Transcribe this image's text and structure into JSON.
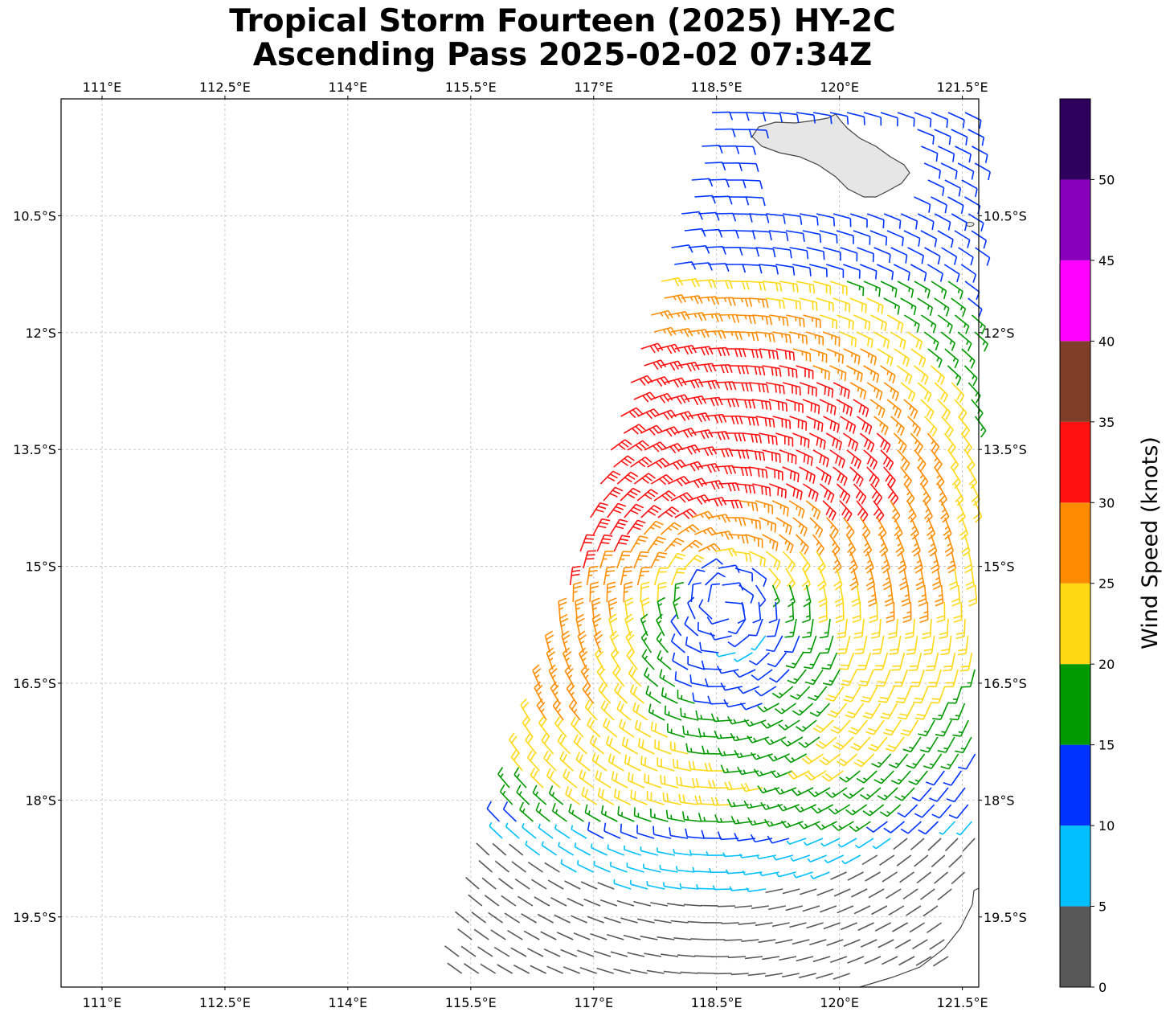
{
  "title": {
    "line1": "Tropical Storm Fourteen (2025) HY-2C",
    "line2": "Ascending Pass 2025-02-02 07:34Z"
  },
  "map": {
    "lon_range": [
      110.5,
      121.7
    ],
    "lat_range": [
      -20.4,
      -9.0
    ],
    "lon_ticks": [
      "111°E",
      "112.5°E",
      "114°E",
      "115.5°E",
      "117°E",
      "118.5°E",
      "120°E",
      "121.5°E"
    ],
    "lat_ticks": [
      "10.5°S",
      "12°S",
      "13.5°S",
      "15°S",
      "16.5°S",
      "18°S",
      "19.5°S"
    ],
    "gridlines": true,
    "land_color": "#e6e6e6",
    "coast_color": "#444444"
  },
  "colorbar": {
    "label": "Wind Speed (knots)",
    "ticks": [
      "0",
      "5",
      "10",
      "15",
      "20",
      "25",
      "30",
      "35",
      "40",
      "45",
      "50"
    ],
    "bins": [
      {
        "min": 0,
        "max": 5,
        "color": "#585858"
      },
      {
        "min": 5,
        "max": 10,
        "color": "#00bfff"
      },
      {
        "min": 10,
        "max": 15,
        "color": "#0033ff"
      },
      {
        "min": 15,
        "max": 20,
        "color": "#009900"
      },
      {
        "min": 20,
        "max": 25,
        "color": "#ffd814"
      },
      {
        "min": 25,
        "max": 30,
        "color": "#ff8c00"
      },
      {
        "min": 30,
        "max": 35,
        "color": "#ff1010"
      },
      {
        "min": 35,
        "max": 40,
        "color": "#7f3e28"
      },
      {
        "min": 40,
        "max": 45,
        "color": "#ff00ff"
      },
      {
        "min": 45,
        "max": 50,
        "color": "#8800bb"
      },
      {
        "min": 50,
        "max": 55,
        "color": "#2e005e"
      }
    ]
  },
  "storm_center": {
    "lon": 118.6,
    "lat": -15.5
  }
}
